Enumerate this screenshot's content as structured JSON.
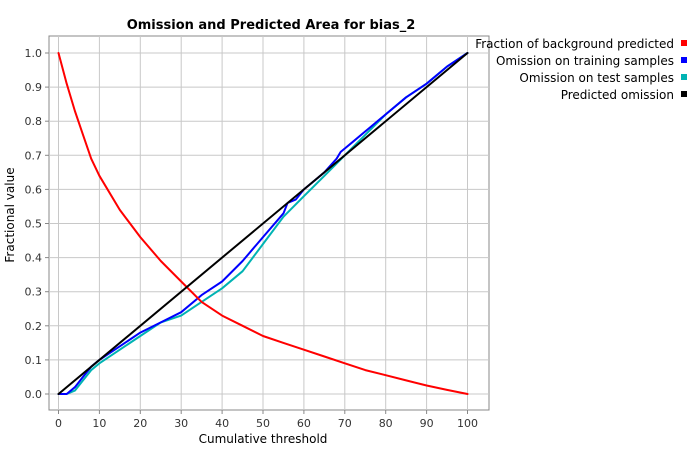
{
  "chart_data": {
    "type": "line",
    "title": "Omission and Predicted Area for bias_2",
    "xlabel": "Cumulative threshold",
    "ylabel": "Fractional value",
    "xlim": [
      0,
      100
    ],
    "ylim": [
      0,
      1.0
    ],
    "xticks": [
      0,
      10,
      20,
      30,
      40,
      50,
      60,
      70,
      80,
      90,
      100
    ],
    "yticks": [
      0.0,
      0.1,
      0.2,
      0.3,
      0.4,
      0.5,
      0.6,
      0.7,
      0.8,
      0.9,
      1.0
    ],
    "xtick_labels": [
      "0",
      "10",
      "20",
      "30",
      "40",
      "50",
      "60",
      "70",
      "80",
      "90",
      "100"
    ],
    "ytick_labels": [
      "0.0",
      "0.1",
      "0.2",
      "0.3",
      "0.4",
      "0.5",
      "0.6",
      "0.7",
      "0.8",
      "0.9",
      "1.0"
    ],
    "grid": true,
    "legend_position": "right",
    "series": [
      {
        "name": "Fraction of background predicted",
        "color": "#ff0000",
        "x": [
          0,
          2,
          4,
          6,
          8,
          10,
          15,
          20,
          25,
          30,
          35,
          40,
          45,
          50,
          55,
          60,
          65,
          70,
          75,
          80,
          85,
          90,
          95,
          100
        ],
        "y": [
          1.0,
          0.91,
          0.83,
          0.76,
          0.69,
          0.64,
          0.54,
          0.46,
          0.39,
          0.33,
          0.27,
          0.23,
          0.2,
          0.17,
          0.15,
          0.13,
          0.11,
          0.09,
          0.07,
          0.055,
          0.04,
          0.025,
          0.012,
          0.0
        ]
      },
      {
        "name": "Omission on training samples",
        "color": "#0000ff",
        "x": [
          0,
          2,
          4,
          6,
          8,
          10,
          15,
          20,
          25,
          30,
          35,
          40,
          45,
          50,
          55,
          56,
          58,
          60,
          62,
          65,
          68,
          69,
          70,
          72,
          75,
          80,
          85,
          90,
          95,
          100
        ],
        "y": [
          0.0,
          0.0,
          0.02,
          0.05,
          0.08,
          0.1,
          0.14,
          0.18,
          0.21,
          0.24,
          0.29,
          0.33,
          0.39,
          0.46,
          0.53,
          0.56,
          0.57,
          0.6,
          0.62,
          0.65,
          0.69,
          0.71,
          0.72,
          0.74,
          0.77,
          0.82,
          0.87,
          0.91,
          0.96,
          1.0
        ]
      },
      {
        "name": "Omission on test samples",
        "color": "#00b3b3",
        "x": [
          0,
          2,
          4,
          6,
          8,
          10,
          15,
          20,
          25,
          30,
          35,
          40,
          45,
          50,
          55,
          60,
          65,
          70,
          75,
          80,
          85,
          90,
          95,
          100
        ],
        "y": [
          0.0,
          0.0,
          0.01,
          0.04,
          0.07,
          0.09,
          0.13,
          0.17,
          0.21,
          0.23,
          0.27,
          0.31,
          0.36,
          0.44,
          0.52,
          0.58,
          0.64,
          0.7,
          0.76,
          0.82,
          0.87,
          0.91,
          0.96,
          1.0
        ]
      },
      {
        "name": "Predicted omission",
        "color": "#000000",
        "x": [
          0,
          100
        ],
        "y": [
          0.0,
          1.0
        ]
      }
    ]
  }
}
